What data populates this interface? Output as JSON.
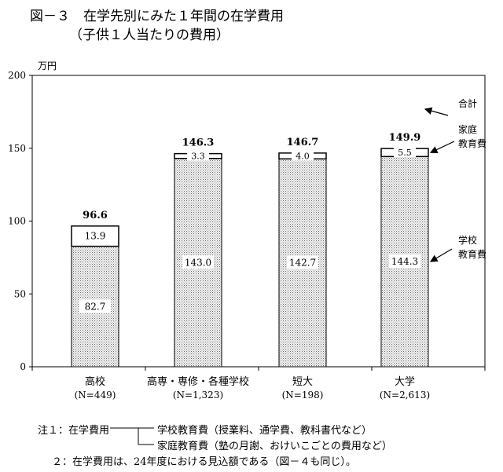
{
  "header": {
    "title": "図－３　在学先別にみた１年間の在学費用",
    "subtitle": "（子供１人当たりの費用）"
  },
  "chart_data": {
    "type": "bar",
    "stacked": true,
    "ylabel": "万円",
    "ylim": [
      0,
      200
    ],
    "yticks": [
      0,
      50,
      100,
      150,
      200
    ],
    "categories": [
      {
        "name": "高校",
        "sub": "(N=449)"
      },
      {
        "name": "高専・専修・各種学校",
        "sub": "(N=1,323)"
      },
      {
        "name": "短大",
        "sub": "(N=198)"
      },
      {
        "name": "大学",
        "sub": "(N=2,613)"
      }
    ],
    "series": [
      {
        "name": "学校教育費",
        "values": [
          82.7,
          143.0,
          142.7,
          144.3
        ],
        "labels": [
          "82.7",
          "143.0",
          "142.7",
          "144.3"
        ]
      },
      {
        "name": "家庭教育費",
        "values": [
          13.9,
          3.3,
          4.0,
          5.5
        ],
        "labels": [
          "13.9",
          "3.3",
          "4.0",
          "5.5"
        ]
      }
    ],
    "totals": [
      "96.6",
      "146.3",
      "146.7",
      "149.9"
    ],
    "legend": {
      "total": "合計",
      "home": [
        "家庭",
        "教育費"
      ],
      "school": [
        "学校",
        "教育費"
      ]
    }
  },
  "notes": {
    "n1_prefix": "注１：在学費用",
    "n1_school": "学校教育費（授業料、通学費、教科書代など）",
    "n1_home": "家庭教育費（塾の月謝、おけいこごとの費用など）",
    "n2": "２：在学費用は、24年度における見込額である（図－４も同じ）。"
  }
}
